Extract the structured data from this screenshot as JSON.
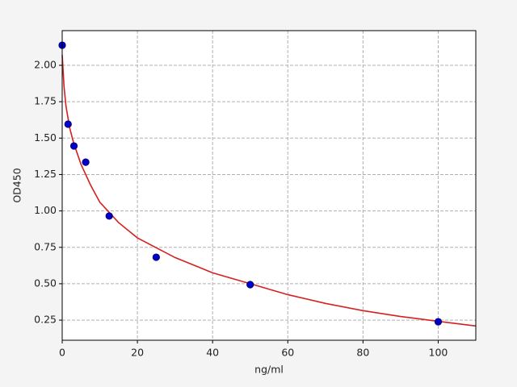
{
  "chart_data": {
    "type": "scatter",
    "xlabel": "ng/ml",
    "ylabel": "OD450",
    "xlim": [
      0,
      110
    ],
    "ylim": [
      0.112,
      2.238
    ],
    "xticks": [
      0,
      20,
      40,
      60,
      80,
      100
    ],
    "yticks": [
      0.25,
      {
        "value": 0.5,
        "label": "0.50"
      },
      0.75,
      {
        "value": 1,
        "label": "1.00"
      },
      1.25,
      {
        "value": 1.5,
        "label": "1.50"
      },
      1.75,
      {
        "value": 2,
        "label": "2.00"
      }
    ],
    "grid": true,
    "series": [
      {
        "type": "line",
        "color": "#d62020",
        "x": [
          0,
          0.5,
          1,
          2,
          3,
          5,
          7.5,
          10,
          15,
          20,
          30,
          40,
          50,
          60,
          70,
          80,
          90,
          100,
          110
        ],
        "values": [
          2.07,
          1.85,
          1.72,
          1.57,
          1.47,
          1.32,
          1.18,
          1.06,
          0.92,
          0.815,
          0.68,
          0.575,
          0.5,
          0.425,
          0.365,
          0.315,
          0.275,
          0.242,
          0.21
        ]
      },
      {
        "type": "scatter",
        "color": "#0000cc",
        "x": [
          0,
          1.56,
          3.125,
          6.25,
          12.5,
          25,
          50,
          100
        ],
        "values": [
          2.138,
          1.596,
          1.446,
          1.335,
          0.965,
          0.682,
          0.494,
          0.239
        ]
      }
    ]
  }
}
